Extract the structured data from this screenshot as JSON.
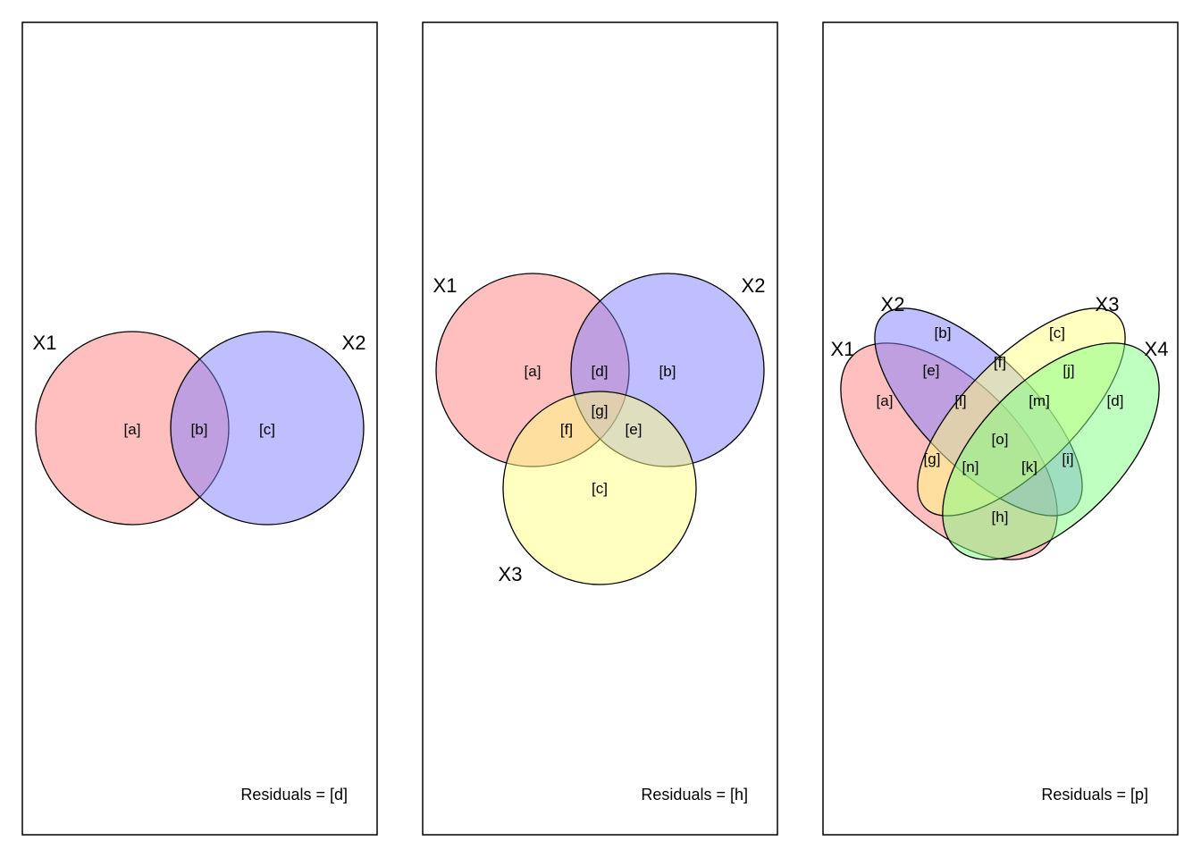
{
  "colors": {
    "X1": "#FF8080",
    "X2": "#8080FF",
    "X3": "#FFFF80",
    "X4": "#80FF80",
    "outline": "#000000"
  },
  "panels": [
    {
      "set_labels": [
        "X1",
        "X2"
      ],
      "regions": [
        "[a]",
        "[b]",
        "[c]"
      ],
      "residuals": "Residuals = [d]"
    },
    {
      "set_labels": [
        "X1",
        "X2",
        "X3"
      ],
      "regions": [
        "[a]",
        "[d]",
        "[b]",
        "[g]",
        "[f]",
        "[e]",
        "[c]"
      ],
      "residuals": "Residuals = [h]"
    },
    {
      "set_labels": [
        "X1",
        "X2",
        "X3",
        "X4"
      ],
      "regions": [
        "[a]",
        "[b]",
        "[c]",
        "[d]",
        "[e]",
        "[f]",
        "[g]",
        "[h]",
        "[i]",
        "[j]",
        "[k]",
        "[l]",
        "[m]",
        "[n]",
        "[o]"
      ],
      "residuals": "Residuals = [p]"
    }
  ]
}
